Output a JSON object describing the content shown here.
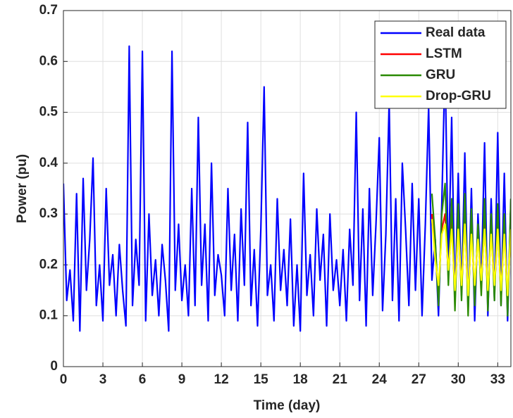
{
  "chart_data": {
    "type": "line",
    "xlabel": "Time (day)",
    "ylabel": "Power (pu)",
    "xlim": [
      0,
      34
    ],
    "xticks": [
      0,
      3,
      6,
      9,
      12,
      15,
      18,
      21,
      24,
      27,
      30,
      33
    ],
    "ylim": [
      0,
      0.7
    ],
    "yticks": [
      0,
      0.1,
      0.2,
      0.3,
      0.4,
      0.5,
      0.6,
      0.7
    ],
    "grid": true,
    "legend": "upper-right",
    "series": [
      {
        "name": "Real data",
        "color": "#0000ff",
        "x": [
          0,
          0.25,
          0.5,
          0.75,
          1,
          1.25,
          1.5,
          1.75,
          2,
          2.25,
          2.5,
          2.75,
          3,
          3.25,
          3.5,
          3.75,
          4,
          4.25,
          4.5,
          4.75,
          5,
          5.25,
          5.5,
          5.75,
          6,
          6.25,
          6.5,
          6.75,
          7,
          7.25,
          7.5,
          7.75,
          8,
          8.25,
          8.5,
          8.75,
          9,
          9.25,
          9.5,
          9.75,
          10,
          10.25,
          10.5,
          10.75,
          11,
          11.25,
          11.5,
          11.75,
          12,
          12.25,
          12.5,
          12.75,
          13,
          13.25,
          13.5,
          13.75,
          14,
          14.25,
          14.5,
          14.75,
          15,
          15.25,
          15.5,
          15.75,
          16,
          16.25,
          16.5,
          16.75,
          17,
          17.25,
          17.5,
          17.75,
          18,
          18.25,
          18.5,
          18.75,
          19,
          19.25,
          19.5,
          19.75,
          20,
          20.25,
          20.5,
          20.75,
          21,
          21.25,
          21.5,
          21.75,
          22,
          22.25,
          22.5,
          22.75,
          23,
          23.25,
          23.5,
          23.75,
          24,
          24.25,
          24.5,
          24.75,
          25,
          25.25,
          25.5,
          25.75,
          26,
          26.25,
          26.5,
          26.75,
          27,
          27.25,
          27.5,
          27.75,
          28,
          28.25,
          28.5,
          28.75,
          29,
          29.25,
          29.5,
          29.75,
          30,
          30.25,
          30.5,
          30.75,
          31,
          31.25,
          31.5,
          31.75,
          32,
          32.25,
          32.5,
          32.75,
          33,
          33.25,
          33.5,
          33.75,
          34
        ],
        "values": [
          0.36,
          0.13,
          0.19,
          0.09,
          0.34,
          0.07,
          0.37,
          0.15,
          0.25,
          0.41,
          0.12,
          0.2,
          0.09,
          0.35,
          0.16,
          0.22,
          0.1,
          0.24,
          0.15,
          0.08,
          0.63,
          0.12,
          0.25,
          0.16,
          0.62,
          0.09,
          0.3,
          0.14,
          0.21,
          0.1,
          0.24,
          0.17,
          0.07,
          0.62,
          0.15,
          0.28,
          0.13,
          0.2,
          0.1,
          0.35,
          0.12,
          0.49,
          0.16,
          0.28,
          0.09,
          0.4,
          0.14,
          0.22,
          0.18,
          0.1,
          0.35,
          0.15,
          0.26,
          0.09,
          0.31,
          0.16,
          0.48,
          0.12,
          0.23,
          0.08,
          0.27,
          0.55,
          0.14,
          0.2,
          0.09,
          0.33,
          0.15,
          0.23,
          0.12,
          0.29,
          0.08,
          0.2,
          0.07,
          0.38,
          0.14,
          0.22,
          0.1,
          0.31,
          0.17,
          0.26,
          0.08,
          0.3,
          0.15,
          0.21,
          0.12,
          0.23,
          0.09,
          0.27,
          0.16,
          0.5,
          0.13,
          0.31,
          0.08,
          0.35,
          0.14,
          0.28,
          0.45,
          0.11,
          0.26,
          0.52,
          0.13,
          0.33,
          0.09,
          0.4,
          0.27,
          0.12,
          0.36,
          0.15,
          0.33,
          0.1,
          0.28,
          0.51,
          0.17,
          0.25,
          0.1,
          0.32,
          0.6,
          0.18,
          0.49,
          0.12,
          0.38,
          0.14,
          0.42,
          0.11,
          0.35,
          0.09,
          0.3,
          0.16,
          0.44,
          0.1,
          0.33,
          0.13,
          0.46,
          0.12,
          0.38,
          0.09,
          0.33
        ]
      },
      {
        "name": "LSTM",
        "color": "#ff0000",
        "x": [
          28,
          28.25,
          28.5,
          28.75,
          29,
          29.25,
          29.5,
          29.75,
          30,
          30.25,
          30.5,
          30.75,
          31,
          31.25,
          31.5,
          31.75,
          32,
          32.25,
          32.5,
          32.75,
          33,
          33.25,
          33.5,
          33.75,
          34
        ],
        "values": [
          0.3,
          0.22,
          0.15,
          0.27,
          0.3,
          0.18,
          0.29,
          0.14,
          0.28,
          0.15,
          0.29,
          0.13,
          0.27,
          0.15,
          0.26,
          0.16,
          0.28,
          0.14,
          0.27,
          0.15,
          0.28,
          0.14,
          0.27,
          0.13,
          0.28
        ]
      },
      {
        "name": "GRU",
        "color": "#2a8a00",
        "x": [
          28,
          28.25,
          28.5,
          28.75,
          29,
          29.25,
          29.5,
          29.75,
          30,
          30.25,
          30.5,
          30.75,
          31,
          31.25,
          31.5,
          31.75,
          32,
          32.25,
          32.5,
          32.75,
          33,
          33.25,
          33.5,
          33.75,
          34
        ],
        "values": [
          0.34,
          0.25,
          0.12,
          0.3,
          0.36,
          0.16,
          0.33,
          0.11,
          0.32,
          0.13,
          0.34,
          0.1,
          0.31,
          0.12,
          0.28,
          0.14,
          0.33,
          0.11,
          0.3,
          0.13,
          0.32,
          0.12,
          0.3,
          0.1,
          0.33
        ]
      },
      {
        "name": "Drop-GRU",
        "color": "#ffff00",
        "x": [
          28,
          28.25,
          28.5,
          28.75,
          29,
          29.25,
          29.5,
          29.75,
          30,
          30.25,
          30.5,
          30.75,
          31,
          31.25,
          31.5,
          31.75,
          32,
          32.25,
          32.5,
          32.75,
          33,
          33.25,
          33.5,
          33.75,
          34
        ],
        "values": [
          0.29,
          0.21,
          0.16,
          0.26,
          0.28,
          0.19,
          0.27,
          0.15,
          0.27,
          0.16,
          0.28,
          0.14,
          0.26,
          0.16,
          0.25,
          0.17,
          0.27,
          0.15,
          0.26,
          0.16,
          0.27,
          0.15,
          0.26,
          0.14,
          0.27
        ]
      }
    ]
  }
}
